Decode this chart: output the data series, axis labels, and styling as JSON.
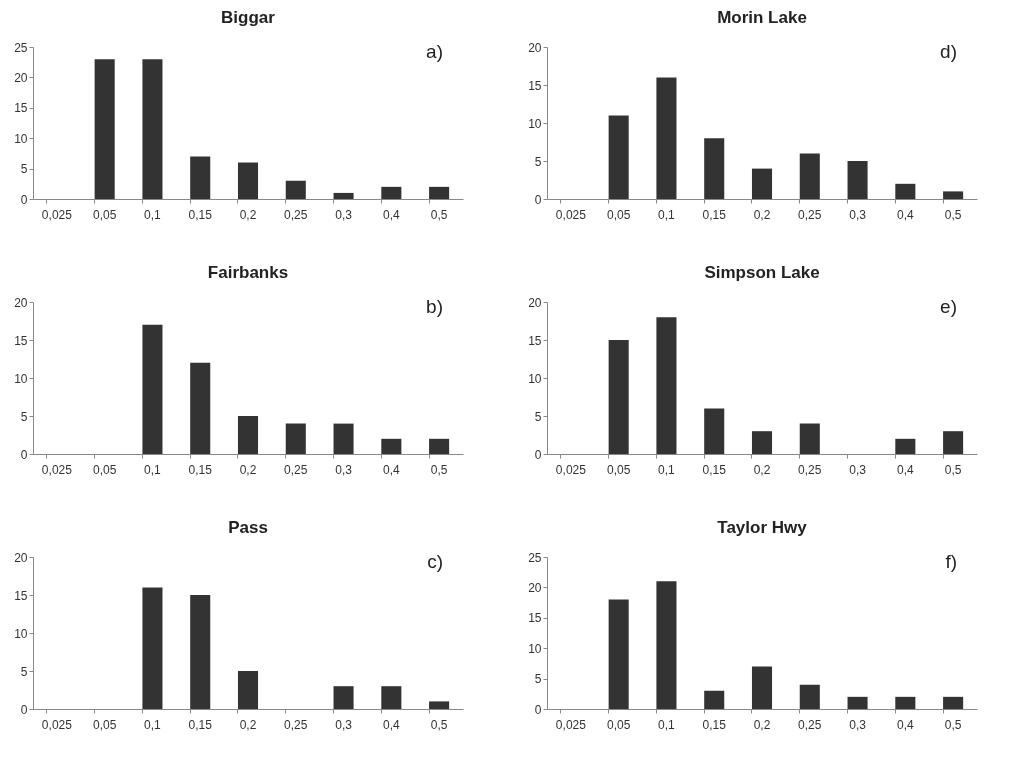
{
  "chart_data": [
    {
      "type": "bar",
      "title": "Biggar",
      "categories": [
        "0,025",
        "0,05",
        "0,1",
        "0,15",
        "0,2",
        "0,25",
        "0,3",
        "0,4",
        "0,5"
      ],
      "values": [
        0,
        23,
        23,
        7,
        6,
        3,
        1,
        2,
        2
      ],
      "color": "#333333",
      "ylim": [
        0,
        25
      ],
      "yticks": [
        0,
        5,
        10,
        15,
        20,
        25
      ],
      "grid": false,
      "annotations": [
        "a)"
      ]
    },
    {
      "type": "bar",
      "title": "Morin Lake",
      "categories": [
        "0,025",
        "0,05",
        "0,1",
        "0,15",
        "0,2",
        "0,25",
        "0,3",
        "0,4",
        "0,5"
      ],
      "values": [
        0,
        11,
        16,
        8,
        4,
        6,
        5,
        2,
        1
      ],
      "color": "#333333",
      "ylim": [
        0,
        20
      ],
      "yticks": [
        0,
        5,
        10,
        15,
        20
      ],
      "grid": false,
      "annotations": [
        "d)"
      ]
    },
    {
      "type": "bar",
      "title": "Fairbanks",
      "categories": [
        "0,025",
        "0,05",
        "0,1",
        "0,15",
        "0,2",
        "0,25",
        "0,3",
        "0,4",
        "0,5"
      ],
      "values": [
        0,
        0,
        17,
        12,
        5,
        4,
        4,
        2,
        2
      ],
      "color": "#333333",
      "ylim": [
        0,
        20
      ],
      "yticks": [
        0,
        5,
        10,
        15,
        20
      ],
      "grid": false,
      "annotations": [
        "b)"
      ]
    },
    {
      "type": "bar",
      "title": "Simpson Lake",
      "categories": [
        "0,025",
        "0,05",
        "0,1",
        "0,15",
        "0,2",
        "0,25",
        "0,3",
        "0,4",
        "0,5"
      ],
      "values": [
        0,
        15,
        18,
        6,
        3,
        4,
        0,
        2,
        3
      ],
      "color": "#333333",
      "ylim": [
        0,
        20
      ],
      "yticks": [
        0,
        5,
        10,
        15,
        20
      ],
      "grid": false,
      "annotations": [
        "e)"
      ]
    },
    {
      "type": "bar",
      "title": "Pass",
      "categories": [
        "0,025",
        "0,05",
        "0,1",
        "0,15",
        "0,2",
        "0,25",
        "0,3",
        "0,4",
        "0,5"
      ],
      "values": [
        0,
        0,
        16,
        15,
        5,
        0,
        3,
        3,
        1
      ],
      "color": "#333333",
      "ylim": [
        0,
        20
      ],
      "yticks": [
        0,
        5,
        10,
        15,
        20
      ],
      "grid": false,
      "annotations": [
        "c)"
      ]
    },
    {
      "type": "bar",
      "title": "Taylor Hwy",
      "categories": [
        "0,025",
        "0,05",
        "0,1",
        "0,15",
        "0,2",
        "0,25",
        "0,3",
        "0,4",
        "0,5"
      ],
      "values": [
        0,
        18,
        21,
        3,
        7,
        4,
        2,
        2,
        2
      ],
      "color": "#333333",
      "ylim": [
        0,
        25
      ],
      "yticks": [
        0,
        5,
        10,
        15,
        20,
        25
      ],
      "grid": false,
      "annotations": [
        "f)"
      ]
    }
  ]
}
